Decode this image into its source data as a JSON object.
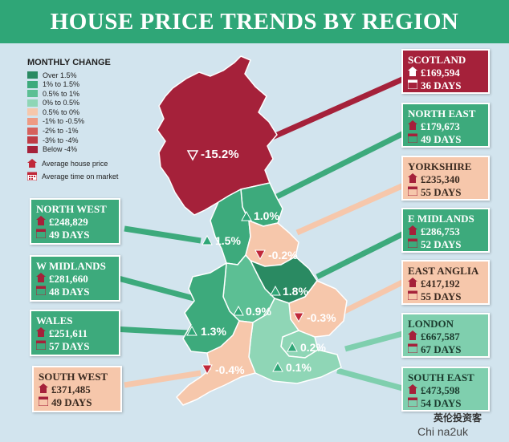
{
  "title": "HOUSE PRICE TRENDS BY REGION",
  "legend": {
    "title": "MONTHLY CHANGE",
    "items": [
      {
        "label": "Over 1.5%",
        "color": "#2a8a62"
      },
      {
        "label": "1% to 1.5%",
        "color": "#3daa7c"
      },
      {
        "label": "0.5% to 1%",
        "color": "#5cbf94"
      },
      {
        "label": "0% to 0.5%",
        "color": "#8fd6b6"
      },
      {
        "label": "0.5% to 0%",
        "color": "#f6c7ab"
      },
      {
        "label": "-1% to -0.5%",
        "color": "#ee9a83"
      },
      {
        "label": "-2% to -1%",
        "color": "#d6605c"
      },
      {
        "label": "-3% to -4%",
        "color": "#bf3b45"
      },
      {
        "label": "Below -4%",
        "color": "#a5213a"
      }
    ],
    "price_note": "Average house price",
    "time_note": "Average time on market"
  },
  "regions": {
    "scotland": {
      "name": "SCOTLAND",
      "price": "£169,594",
      "days": "36 DAYS",
      "change": "-15.2%"
    },
    "north_east": {
      "name": "NORTH EAST",
      "price": "£179,673",
      "days": "49 DAYS",
      "change": "1.0%"
    },
    "yorkshire": {
      "name": "YORKSHIRE",
      "price": "£235,340",
      "days": "55 DAYS",
      "change": "-0.2%"
    },
    "e_midlands": {
      "name": "E MIDLANDS",
      "price": "£286,753",
      "days": "52 DAYS",
      "change": "1.8%"
    },
    "east_anglia": {
      "name": "EAST ANGLIA",
      "price": "£417,192",
      "days": "55 DAYS",
      "change": "-0.3%"
    },
    "london": {
      "name": "LONDON",
      "price": "£667,587",
      "days": "67 DAYS",
      "change": "0.2%"
    },
    "south_east": {
      "name": "SOUTH EAST",
      "price": "£473,598",
      "days": "54 DAYS",
      "change": "0.1%"
    },
    "south_west": {
      "name": "SOUTH WEST",
      "price": "£371,485",
      "days": "49 DAYS",
      "change": "-0.4%"
    },
    "wales": {
      "name": "WALES",
      "price": "£251,611",
      "days": "57 DAYS",
      "change": "1.3%"
    },
    "w_midlands": {
      "name": "W MIDLANDS",
      "price": "£281,660",
      "days": "48 DAYS",
      "change": "0.9%"
    },
    "north_west": {
      "name": "NORTH WEST",
      "price": "£248,829",
      "days": "49 DAYS",
      "change": "1.5%"
    }
  },
  "watermark": {
    "text": "英伦投资客",
    "site": "Chi na2uk"
  }
}
